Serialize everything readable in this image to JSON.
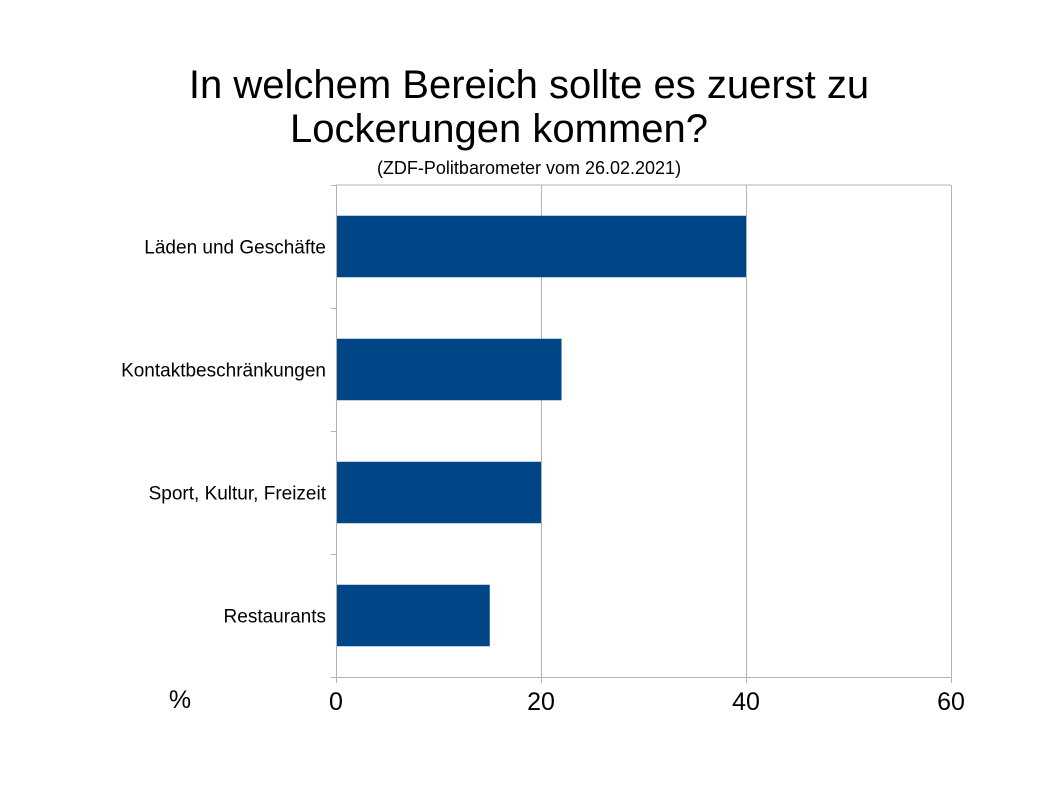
{
  "chart_data": {
    "type": "bar",
    "orientation": "horizontal",
    "title_lines": [
      "In welchem Bereich sollte es zuerst zu",
      "Lockerungen kommen?"
    ],
    "subtitle": "(ZDF-Politbarometer vom 26.02.2021)",
    "categories": [
      "Läden und Geschäfte",
      "Kontaktbeschränkungen",
      "Sport, Kultur, Freizeit",
      "Restaurants"
    ],
    "values": [
      40,
      22,
      20,
      15
    ],
    "xlabel": "%",
    "xlim": [
      0,
      60
    ],
    "xticks": [
      "0",
      "20",
      "40",
      "60"
    ],
    "grid": "vertical",
    "bar_color": "#004586",
    "grid_color": "#b3b3b3"
  }
}
